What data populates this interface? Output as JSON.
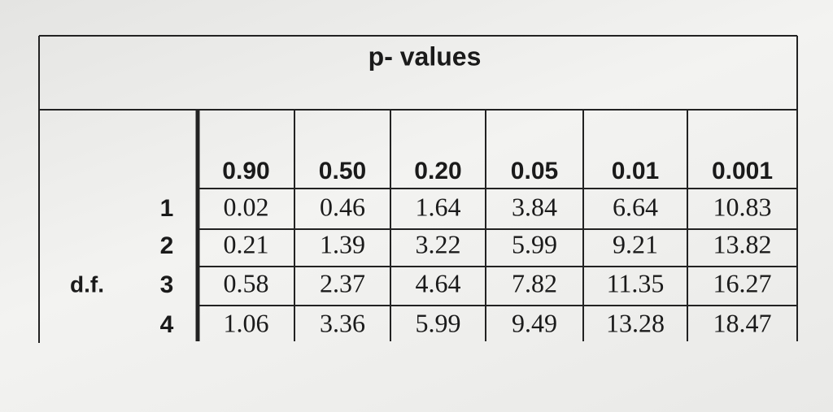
{
  "table": {
    "title": "p- values",
    "side_label": "d.f.",
    "columns": [
      "0.90",
      "0.50",
      "0.20",
      "0.05",
      "0.01",
      "0.001"
    ],
    "rows": [
      {
        "df": "1",
        "values": [
          "0.02",
          "0.46",
          "1.64",
          "3.84",
          "6.64",
          "10.83"
        ]
      },
      {
        "df": "2",
        "values": [
          "0.21",
          "1.39",
          "3.22",
          "5.99",
          "9.21",
          "13.82"
        ]
      },
      {
        "df": "3",
        "values": [
          "0.58",
          "2.37",
          "4.64",
          "7.82",
          "11.35",
          "16.27"
        ]
      },
      {
        "df": "4",
        "values": [
          "1.06",
          "3.36",
          "5.99",
          "9.49",
          "13.28",
          "18.47"
        ]
      }
    ]
  }
}
